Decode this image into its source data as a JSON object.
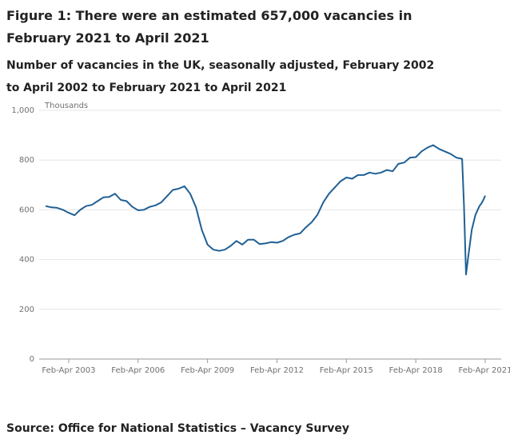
{
  "chart_data": {
    "type": "line",
    "title": "Figure 1: There were an estimated 657,000 vacancies in February 2021 to April 2021",
    "subtitle": "Number of vacancies in the UK, seasonally adjusted, February 2002 to April 2002 to February 2021 to April 2021",
    "y_unit_label": "Thousands",
    "source": "Source: Office for National Statistics – Vacancy Survey",
    "color": "#206095",
    "x": [
      2002.25,
      2002.5,
      2002.75,
      2003.0,
      2003.25,
      2003.5,
      2003.75,
      2004.0,
      2004.25,
      2004.5,
      2004.75,
      2005.0,
      2005.25,
      2005.5,
      2005.75,
      2006.0,
      2006.25,
      2006.5,
      2006.75,
      2007.0,
      2007.25,
      2007.5,
      2007.75,
      2008.0,
      2008.25,
      2008.5,
      2008.75,
      2009.0,
      2009.25,
      2009.5,
      2009.75,
      2010.0,
      2010.25,
      2010.5,
      2010.75,
      2011.0,
      2011.25,
      2011.5,
      2011.75,
      2012.0,
      2012.25,
      2012.5,
      2012.75,
      2013.0,
      2013.25,
      2013.5,
      2013.75,
      2014.0,
      2014.25,
      2014.5,
      2014.75,
      2015.0,
      2015.25,
      2015.5,
      2015.75,
      2016.0,
      2016.25,
      2016.5,
      2016.75,
      2017.0,
      2017.25,
      2017.5,
      2017.75,
      2018.0,
      2018.25,
      2018.5,
      2018.75,
      2019.0,
      2019.25,
      2019.5,
      2019.75,
      2020.0,
      2020.25,
      2020.33,
      2020.42,
      2020.5,
      2020.67,
      2020.83,
      2021.0,
      2021.08,
      2021.17,
      2021.25
    ],
    "values": [
      615,
      610,
      608,
      600,
      588,
      578,
      600,
      615,
      620,
      635,
      650,
      652,
      665,
      640,
      635,
      612,
      598,
      600,
      612,
      618,
      630,
      655,
      680,
      685,
      695,
      665,
      610,
      520,
      460,
      440,
      435,
      440,
      455,
      475,
      460,
      480,
      480,
      462,
      465,
      470,
      468,
      475,
      490,
      500,
      505,
      530,
      550,
      580,
      630,
      665,
      690,
      715,
      730,
      725,
      740,
      740,
      750,
      745,
      750,
      760,
      755,
      785,
      790,
      810,
      812,
      835,
      850,
      860,
      845,
      835,
      825,
      810,
      805,
      620,
      340,
      400,
      520,
      580,
      615,
      625,
      640,
      657
    ],
    "xlim": [
      2002.25,
      2021.25
    ],
    "xticks": [
      {
        "value": 2003.25,
        "label": "Feb-Apr 2003"
      },
      {
        "value": 2006.25,
        "label": "Feb-Apr 2006"
      },
      {
        "value": 2009.25,
        "label": "Feb-Apr 2009"
      },
      {
        "value": 2012.25,
        "label": "Feb-Apr 2012"
      },
      {
        "value": 2015.25,
        "label": "Feb-Apr 2015"
      },
      {
        "value": 2018.25,
        "label": "Feb-Apr 2018"
      },
      {
        "value": 2021.25,
        "label": "Feb-Apr 2021"
      }
    ],
    "ylim": [
      0,
      1000
    ],
    "yticks": [
      0,
      200,
      400,
      600,
      800,
      {
        "value": 1000,
        "label": "1,000"
      }
    ],
    "grid": true
  }
}
